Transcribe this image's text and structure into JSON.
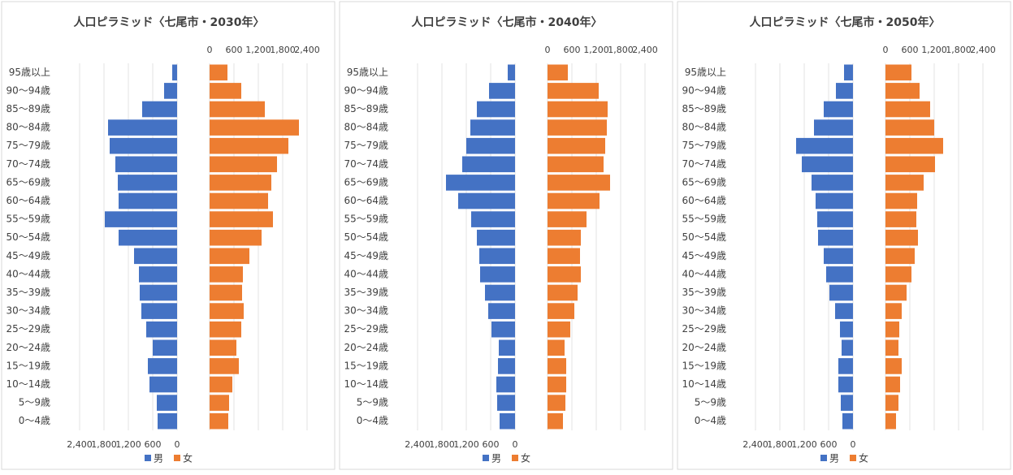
{
  "chart_data": [
    {
      "type": "pyramid",
      "title": "人口ピラミッド〈七尾市・2030年〉",
      "categories": [
        "95歳以上",
        "90〜94歳",
        "85〜89歳",
        "80〜84歳",
        "75〜79歳",
        "70〜74歳",
        "65〜69歳",
        "60〜64歳",
        "55〜59歳",
        "50〜54歳",
        "45〜49歳",
        "40〜44歳",
        "35〜39歳",
        "30〜34歳",
        "25〜29歳",
        "20〜24歳",
        "15〜19歳",
        "10〜14歳",
        "5〜9歳",
        "0〜4歳"
      ],
      "series": [
        {
          "name": "男",
          "color": "#4472c4",
          "values": [
            120,
            320,
            860,
            1700,
            1660,
            1520,
            1460,
            1440,
            1780,
            1440,
            1060,
            940,
            920,
            880,
            760,
            600,
            720,
            680,
            500,
            480
          ]
        },
        {
          "name": "女",
          "color": "#ed7d31",
          "values": [
            440,
            780,
            1360,
            2200,
            1940,
            1660,
            1520,
            1440,
            1560,
            1280,
            980,
            820,
            800,
            840,
            780,
            660,
            720,
            560,
            480,
            460
          ]
        }
      ],
      "xlim": [
        0,
        2400
      ],
      "xticks": [
        0,
        600,
        {
          "value": 1200,
          "label": "1,200"
        },
        {
          "value": 1800,
          "label": "1,800"
        },
        {
          "value": 2400,
          "label": "2,400"
        }
      ],
      "grid": true
    },
    {
      "type": "pyramid",
      "title": "人口ピラミッド〈七尾市・2040年〉",
      "categories": [
        "95歳以上",
        "90〜94歳",
        "85〜89歳",
        "80〜84歳",
        "75〜79歳",
        "70〜74歳",
        "65〜69歳",
        "60〜64歳",
        "55〜59歳",
        "50〜54歳",
        "45〜49歳",
        "40〜44歳",
        "35〜39歳",
        "30〜34歳",
        "25〜29歳",
        "20〜24歳",
        "15〜19歳",
        "10〜14歳",
        "5〜9歳",
        "0〜4歳"
      ],
      "series": [
        {
          "name": "男",
          "color": "#4472c4",
          "values": [
            180,
            640,
            940,
            1100,
            1200,
            1300,
            1700,
            1400,
            1080,
            940,
            880,
            860,
            740,
            660,
            580,
            400,
            420,
            460,
            440,
            380
          ]
        },
        {
          "name": "女",
          "color": "#ed7d31",
          "values": [
            500,
            1260,
            1480,
            1460,
            1420,
            1380,
            1540,
            1280,
            960,
            820,
            800,
            820,
            740,
            660,
            560,
            420,
            460,
            460,
            440,
            380
          ]
        }
      ],
      "xlim": [
        0,
        2400
      ],
      "xticks": [
        0,
        600,
        {
          "value": 1200,
          "label": "1,200"
        },
        {
          "value": 1800,
          "label": "1,800"
        },
        {
          "value": 2400,
          "label": "2,400"
        }
      ],
      "grid": true
    },
    {
      "type": "pyramid",
      "title": "人口ピラミッド〈七尾市・2050年〉",
      "categories": [
        "95歳以上",
        "90〜94歳",
        "85〜89歳",
        "80〜84歳",
        "75〜79歳",
        "70〜74歳",
        "65〜69歳",
        "60〜64歳",
        "55〜59歳",
        "50〜54歳",
        "45〜49歳",
        "40〜44歳",
        "35〜39歳",
        "30〜34歳",
        "25〜29歳",
        "20〜24歳",
        "15〜19歳",
        "10〜14歳",
        "5〜9歳",
        "0〜4歳"
      ],
      "series": [
        {
          "name": "男",
          "color": "#4472c4",
          "values": [
            220,
            420,
            720,
            960,
            1400,
            1260,
            1020,
            920,
            880,
            860,
            720,
            660,
            580,
            440,
            320,
            280,
            360,
            360,
            300,
            260
          ]
        },
        {
          "name": "女",
          "color": "#ed7d31",
          "values": [
            640,
            840,
            1100,
            1200,
            1420,
            1220,
            940,
            780,
            760,
            800,
            720,
            640,
            520,
            400,
            340,
            320,
            400,
            360,
            320,
            260
          ]
        }
      ],
      "xlim": [
        0,
        2400
      ],
      "xticks": [
        0,
        600,
        {
          "value": 1200,
          "label": "1,200"
        },
        {
          "value": 1800,
          "label": "1,800"
        },
        {
          "value": 2400,
          "label": "2,400"
        }
      ],
      "grid": true
    }
  ]
}
